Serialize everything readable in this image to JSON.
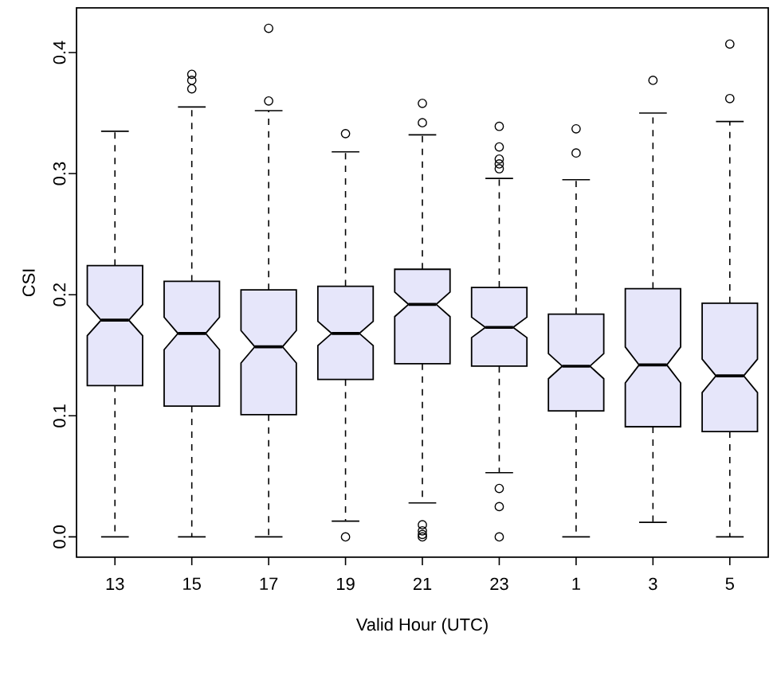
{
  "chart_data": {
    "type": "box",
    "xlabel": "Valid Hour (UTC)",
    "ylabel": "CSI",
    "color": "#e6e6fa",
    "categories": [
      "13",
      "15",
      "17",
      "19",
      "21",
      "23",
      "1",
      "3",
      "5"
    ],
    "ylim": [
      -0.0168,
      0.4368
    ],
    "yticks": [
      {
        "value": 0,
        "label": "0.0"
      },
      {
        "value": 0.1,
        "label": "0.1"
      },
      {
        "value": 0.2,
        "label": "0.2"
      },
      {
        "value": 0.3,
        "label": "0.3"
      },
      {
        "value": 0.4,
        "label": "0.4"
      }
    ],
    "boxes": [
      {
        "low": 0,
        "q1": 0.125,
        "median": 0.179,
        "q3": 0.224,
        "high": 0.335
      },
      {
        "low": 0,
        "q1": 0.108,
        "median": 0.168,
        "q3": 0.211,
        "high": 0.355,
        "outliers": [
          0.37,
          0.377,
          0.382
        ]
      },
      {
        "low": 0,
        "q1": 0.101,
        "median": 0.157,
        "q3": 0.204,
        "high": 0.352,
        "outliers": [
          0.36,
          0.42
        ]
      },
      {
        "low": 0.013,
        "q1": 0.13,
        "median": 0.168,
        "q3": 0.207,
        "high": 0.318,
        "outliers": [
          0,
          0.333
        ]
      },
      {
        "low": 0.028,
        "q1": 0.143,
        "median": 0.192,
        "q3": 0.221,
        "high": 0.332,
        "outliers": [
          0,
          0.002,
          0.005,
          0.01,
          0.342,
          0.358
        ]
      },
      {
        "low": 0.053,
        "q1": 0.141,
        "median": 0.173,
        "q3": 0.206,
        "high": 0.296,
        "outliers": [
          0,
          0.025,
          0.04,
          0.304,
          0.308,
          0.312,
          0.322,
          0.339
        ]
      },
      {
        "low": 0,
        "q1": 0.104,
        "median": 0.141,
        "q3": 0.184,
        "high": 0.295,
        "outliers": [
          0.317,
          0.337
        ]
      },
      {
        "low": 0.012,
        "q1": 0.091,
        "median": 0.142,
        "q3": 0.205,
        "high": 0.35,
        "outliers": [
          0.377
        ]
      },
      {
        "low": 0,
        "q1": 0.087,
        "median": 0.133,
        "q3": 0.193,
        "high": 0.343,
        "outliers": [
          0.362,
          0.407
        ]
      }
    ]
  }
}
